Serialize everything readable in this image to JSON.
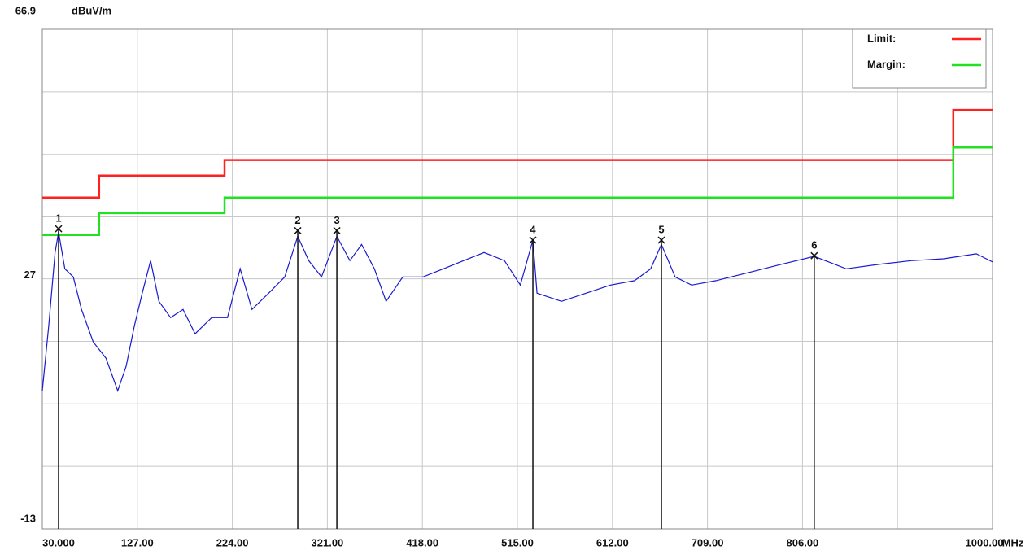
{
  "chart_data": {
    "type": "line",
    "y_unit": "dBuV/m",
    "x_unit": "MHz",
    "xlim": [
      30,
      1000
    ],
    "ylim": [
      -13,
      66.9
    ],
    "xticks": [
      {
        "value": 30,
        "label": "30.000"
      },
      {
        "value": 127,
        "label": "127.00"
      },
      {
        "value": 224,
        "label": "224.00"
      },
      {
        "value": 321,
        "label": "321.00"
      },
      {
        "value": 418,
        "label": "418.00"
      },
      {
        "value": 515,
        "label": "515.00"
      },
      {
        "value": 612,
        "label": "612.00"
      },
      {
        "value": 709,
        "label": "709.00"
      },
      {
        "value": 806,
        "label": "806.00"
      },
      {
        "value": 903,
        "label": null
      },
      {
        "value": 1000,
        "label": "1000.00"
      }
    ],
    "yticks": [
      66.9,
      {
        "value": 56.9,
        "label": null
      },
      {
        "value": 46.9,
        "label": null
      },
      {
        "value": 36.9,
        "label": null
      },
      27,
      {
        "value": 17,
        "label": null
      },
      {
        "value": 7,
        "label": null
      },
      {
        "value": -3,
        "label": null
      },
      -13
    ],
    "grid": true,
    "legend": "top-right",
    "series": [
      {
        "name": "Limit:",
        "color": "#ff2020",
        "x": [
          30,
          88,
          88,
          216,
          216,
          960,
          960,
          1000
        ],
        "values": [
          40,
          40,
          43.5,
          43.5,
          46,
          46,
          54,
          54
        ]
      },
      {
        "name": "Margin:",
        "color": "#22e022",
        "x": [
          30,
          88,
          88,
          216,
          216,
          960,
          960,
          1000
        ],
        "values": [
          34,
          34,
          37.5,
          37.5,
          40,
          40,
          48,
          48
        ]
      },
      {
        "color": "#1a1ad0",
        "x": [
          30,
          36.6,
          43,
          46.6,
          53,
          61.6,
          70,
          82,
          95,
          107,
          115.5,
          124,
          132,
          140.5,
          149,
          161,
          173.7,
          186,
          202.8,
          219,
          232,
          244,
          261,
          277.5,
          290.8,
          302,
          315,
          330.7,
          344,
          356,
          369,
          381,
          398,
          418.7,
          439.5,
          460,
          481,
          501.8,
          518,
          530.8,
          535,
          560,
          585,
          610,
          634.6,
          651,
          662,
          676,
          692.8,
          717.7,
          751,
          784,
          818,
          850.6,
          883.8,
          917,
          950,
          983.5,
          1000
        ],
        "values": [
          9.1,
          19.5,
          31.2,
          34.5,
          28.6,
          27.3,
          22.1,
          16.9,
          14.3,
          9.1,
          13,
          19.5,
          24.7,
          29.9,
          23.4,
          20.8,
          22.1,
          18.2,
          20.8,
          20.8,
          28.6,
          22.1,
          24.7,
          27.3,
          33.8,
          29.9,
          27.3,
          33.8,
          29.9,
          32.5,
          28.6,
          23.4,
          27.3,
          27.3,
          28.6,
          29.9,
          31.2,
          29.9,
          26,
          33.2,
          24.7,
          23.4,
          24.7,
          26,
          26.7,
          28.6,
          32.5,
          27.3,
          26,
          26.7,
          28,
          29.3,
          30.6,
          28.6,
          29.3,
          29.9,
          30.2,
          31,
          29.7
        ]
      }
    ],
    "markers": {
      "labels": [
        "1",
        "2",
        "3",
        "4",
        "5",
        "6"
      ],
      "x": [
        46.6,
        290.8,
        330.7,
        530.8,
        662,
        818
      ],
      "values": [
        35,
        34.7,
        34.7,
        33.2,
        33.2,
        30.7
      ]
    }
  }
}
